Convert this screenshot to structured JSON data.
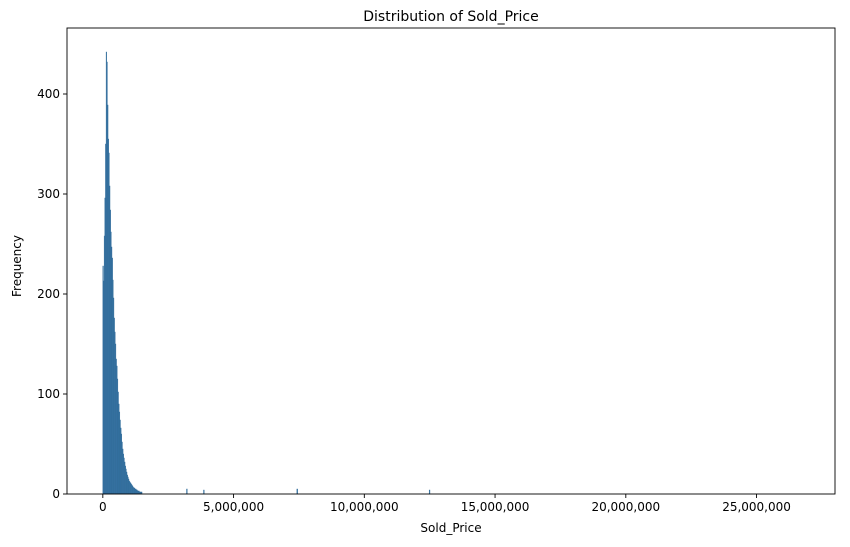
{
  "chart_data": {
    "type": "bar",
    "subtype": "histogram",
    "title": "Distribution of Sold_Price",
    "xlabel": "Sold_Price",
    "ylabel": "Frequency",
    "xlim": [
      -1370000,
      28000000
    ],
    "ylim": [
      0,
      466
    ],
    "xticks": [
      0,
      5000000,
      10000000,
      15000000,
      20000000,
      25000000
    ],
    "xtick_labels": [
      "0",
      "5,000,000",
      "10,000,000",
      "15,000,000",
      "20,000,000",
      "25,000,000"
    ],
    "yticks": [
      0,
      100,
      200,
      300,
      400
    ],
    "ytick_labels": [
      "0",
      "100",
      "200",
      "300",
      "400"
    ],
    "bin_width": 25000,
    "bin_start": 0,
    "bar_color": "#3a77a8",
    "grid": false,
    "frequencies": [
      228,
      213,
      258,
      296,
      350,
      442,
      432,
      389,
      355,
      341,
      308,
      284,
      262,
      247,
      236,
      214,
      196,
      176,
      162,
      150,
      135,
      128,
      115,
      102,
      90,
      82,
      74,
      66,
      60,
      52,
      45,
      40,
      36,
      32,
      28,
      25,
      22,
      19,
      17,
      15,
      13,
      12,
      11,
      10,
      9,
      8,
      7,
      6,
      6,
      5,
      5,
      4,
      4,
      3,
      3,
      3,
      2,
      2,
      2,
      2
    ],
    "outliers": [
      {
        "x": 3200000,
        "count": 5
      },
      {
        "x": 3850000,
        "count": 4
      },
      {
        "x": 7420000,
        "count": 5
      },
      {
        "x": 12480000,
        "count": 4
      }
    ]
  }
}
